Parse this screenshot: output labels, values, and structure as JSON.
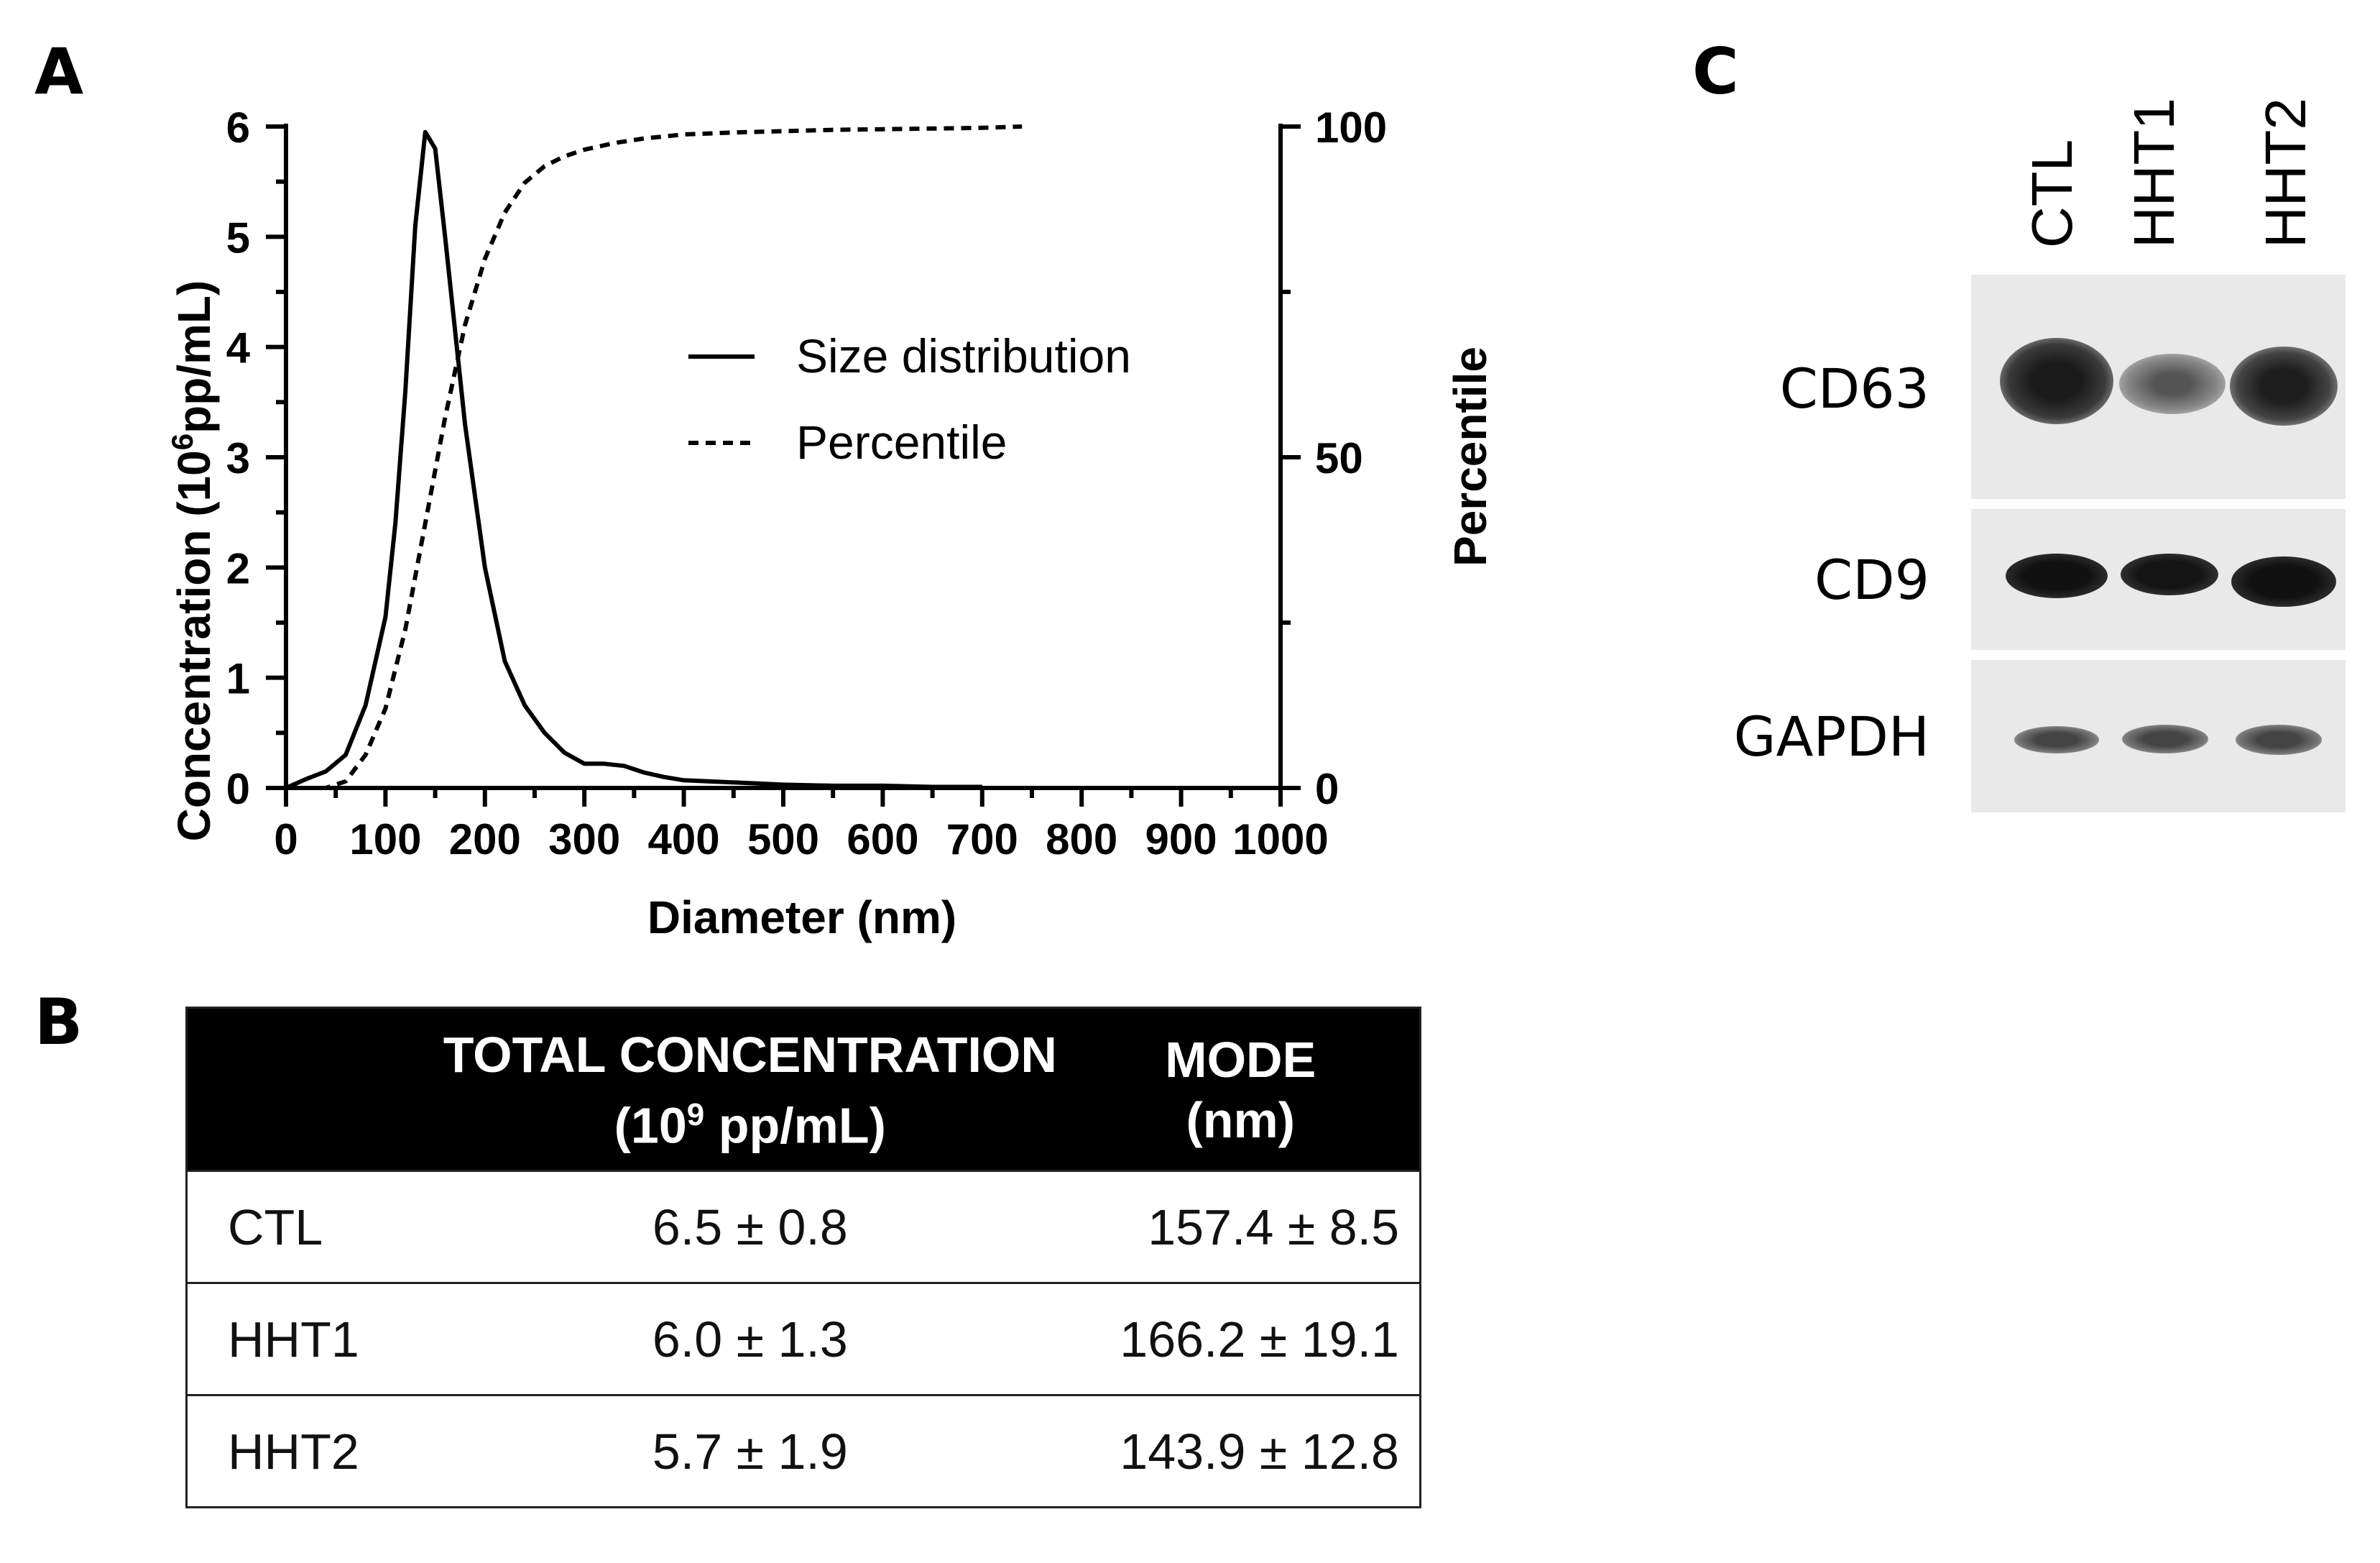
{
  "panels": {
    "a": "A",
    "b": "B",
    "c": "C"
  },
  "chart_data": {
    "type": "line",
    "xlabel": "Diameter (nm)",
    "ylabel_left": "Concentration (10",
    "ylabel_left_sup": "6",
    "ylabel_left_tail": "pp/mL)",
    "ylabel_right": "Percentile",
    "xlim": [
      0,
      1000
    ],
    "ylim_left": [
      0,
      6
    ],
    "ylim_right": [
      0,
      100
    ],
    "x_ticks": [
      "0",
      "100",
      "200",
      "300",
      "400",
      "500",
      "600",
      "700",
      "800",
      "900",
      "1000"
    ],
    "y_left_ticks": [
      "0",
      "1",
      "2",
      "3",
      "4",
      "5",
      "6"
    ],
    "y_right_ticks": [
      "0",
      "50",
      "100"
    ],
    "grid": false,
    "legend_position": "center-right",
    "series": [
      {
        "name": "Size distribution",
        "axis": "left",
        "style": "solid",
        "x": [
          0,
          20,
          40,
          60,
          80,
          100,
          110,
          120,
          130,
          140,
          150,
          160,
          180,
          200,
          220,
          240,
          260,
          280,
          300,
          320,
          340,
          360,
          380,
          400,
          450,
          500,
          550,
          600,
          650,
          700
        ],
        "y": [
          0.0,
          0.08,
          0.15,
          0.3,
          0.75,
          1.55,
          2.4,
          3.6,
          5.1,
          5.95,
          5.8,
          5.0,
          3.3,
          2.0,
          1.15,
          0.75,
          0.5,
          0.32,
          0.22,
          0.22,
          0.2,
          0.14,
          0.1,
          0.07,
          0.05,
          0.03,
          0.02,
          0.02,
          0.01,
          0.01
        ]
      },
      {
        "name": "Percentile",
        "axis": "right",
        "style": "dashed",
        "x": [
          0,
          40,
          60,
          80,
          100,
          120,
          140,
          160,
          180,
          200,
          220,
          240,
          260,
          280,
          300,
          330,
          360,
          400,
          450,
          500,
          550,
          600,
          650,
          700,
          740
        ],
        "y": [
          0,
          0,
          1,
          5,
          12,
          24,
          40,
          56,
          70,
          80,
          87,
          91.5,
          94,
          95.5,
          96.5,
          97.5,
          98.2,
          98.8,
          99.1,
          99.3,
          99.5,
          99.6,
          99.7,
          99.8,
          100
        ]
      }
    ]
  },
  "table": {
    "header": {
      "col1": "",
      "col2_line1": "TOTAL CONCENTRATION",
      "col2_line2_pre": "(10",
      "col2_line2_sup": "9",
      "col2_line2_post": " pp/mL)",
      "col3_line1": "MODE",
      "col3_line2": "(nm)"
    },
    "rows": [
      {
        "label": "CTL",
        "concentration": "6.5 ± 0.8",
        "mode": "157.4 ± 8.5"
      },
      {
        "label": "HHT1",
        "concentration": "6.0 ± 1.3",
        "mode": "166.2 ± 19.1"
      },
      {
        "label": "HHT2",
        "concentration": "5.7 ± 1.9",
        "mode": "143.9 ± 12.8"
      }
    ]
  },
  "blot": {
    "lanes": [
      "CTL",
      "HHT1",
      "HHT2"
    ],
    "markers": [
      "CD63",
      "CD9",
      "GAPDH"
    ]
  }
}
